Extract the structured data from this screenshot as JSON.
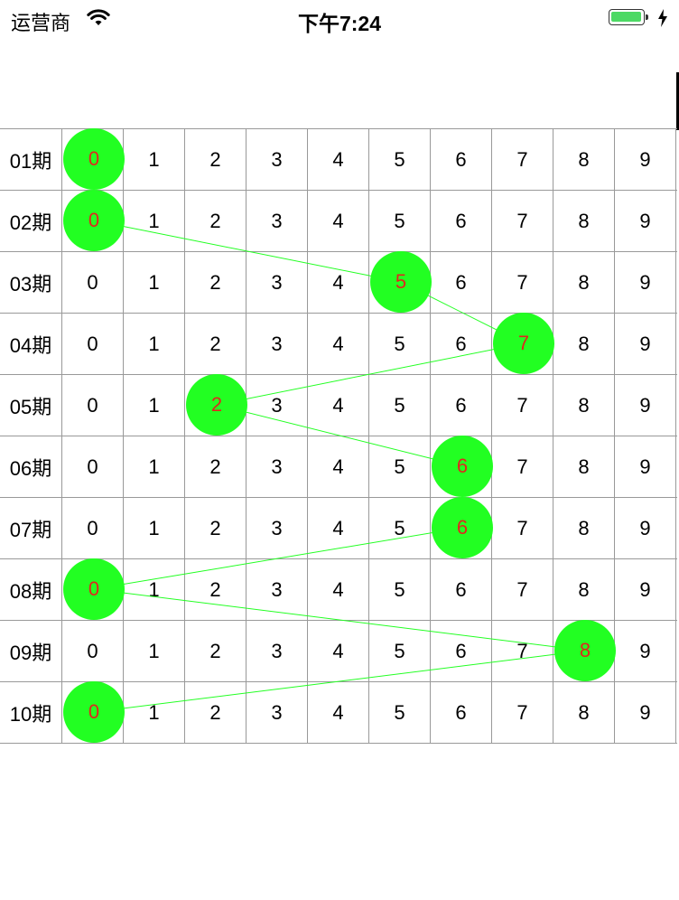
{
  "status_bar": {
    "carrier": "运营商",
    "time": "下午7:24"
  },
  "table": {
    "digits": [
      "0",
      "1",
      "2",
      "3",
      "4",
      "5",
      "6",
      "7",
      "8",
      "9"
    ],
    "rows": [
      {
        "label": "01期",
        "selected": 0
      },
      {
        "label": "02期",
        "selected": 0
      },
      {
        "label": "03期",
        "selected": 5
      },
      {
        "label": "04期",
        "selected": 7
      },
      {
        "label": "05期",
        "selected": 2
      },
      {
        "label": "06期",
        "selected": 6
      },
      {
        "label": "07期",
        "selected": 6
      },
      {
        "label": "08期",
        "selected": 0
      },
      {
        "label": "09期",
        "selected": 8
      },
      {
        "label": "10期",
        "selected": 0
      }
    ]
  },
  "colors": {
    "ball": "#22ff22",
    "ball_text": "#e0271e",
    "trend_line": "#22ff22",
    "grid_line": "#999999"
  }
}
